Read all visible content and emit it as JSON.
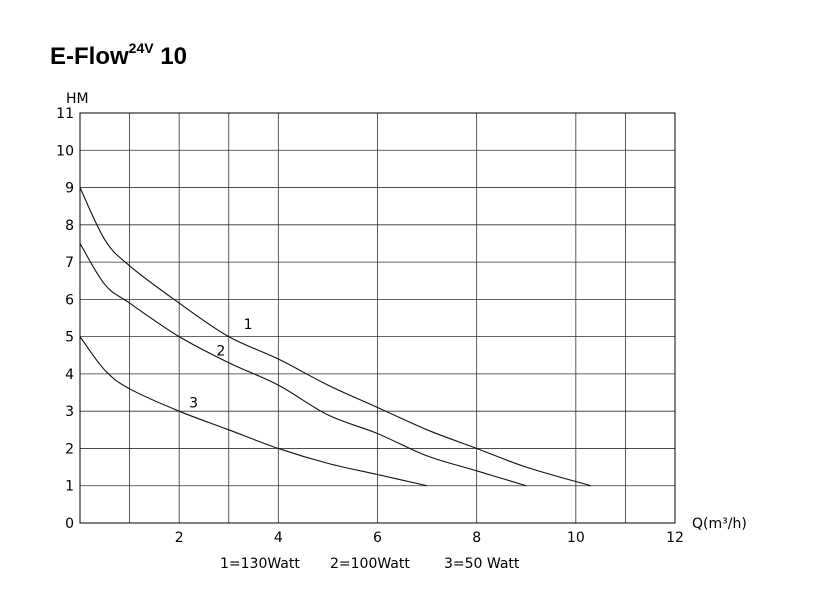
{
  "title": {
    "main": "E-Flow",
    "superscript": "24V",
    "suffix": " 10"
  },
  "chart_data": {
    "type": "line",
    "xlabel": "Q(m³/h)",
    "ylabel": "HM",
    "xlim": [
      0,
      12
    ],
    "ylim": [
      0,
      11
    ],
    "grid": true,
    "x_tick_labels": [
      "2",
      "4",
      "6",
      "8",
      "10",
      "12"
    ],
    "x_tick_values": [
      2,
      4,
      6,
      8,
      10,
      12
    ],
    "x_grid_values": [
      1,
      2,
      3,
      4,
      6,
      8,
      10,
      11,
      12
    ],
    "y_ticks": [
      0,
      1,
      2,
      3,
      4,
      5,
      6,
      7,
      8,
      9,
      10,
      11
    ],
    "series": [
      {
        "name": "1",
        "x": [
          0,
          0.5,
          1,
          2,
          3,
          4,
          5,
          6,
          7,
          8,
          9,
          10.3
        ],
        "y": [
          9.0,
          7.6,
          6.9,
          5.9,
          5.0,
          4.4,
          3.7,
          3.1,
          2.5,
          2.0,
          1.5,
          1.0
        ],
        "label_pos": [
          3.3,
          5.2
        ]
      },
      {
        "name": "2",
        "x": [
          0,
          0.5,
          1,
          2,
          3,
          4,
          5,
          6,
          7,
          8,
          9
        ],
        "y": [
          7.5,
          6.4,
          5.9,
          5.0,
          4.3,
          3.7,
          2.9,
          2.4,
          1.8,
          1.4,
          1.0
        ],
        "label_pos": [
          2.75,
          4.5
        ]
      },
      {
        "name": "3",
        "x": [
          0,
          0.5,
          1,
          2,
          3,
          4,
          5,
          6,
          7
        ],
        "y": [
          5.0,
          4.1,
          3.6,
          3.0,
          2.5,
          2.0,
          1.6,
          1.3,
          1.0
        ],
        "label_pos": [
          2.2,
          3.1
        ]
      }
    ],
    "legend_entries": [
      "1=130Watt",
      "2=100Watt",
      "3=50 Watt"
    ]
  }
}
